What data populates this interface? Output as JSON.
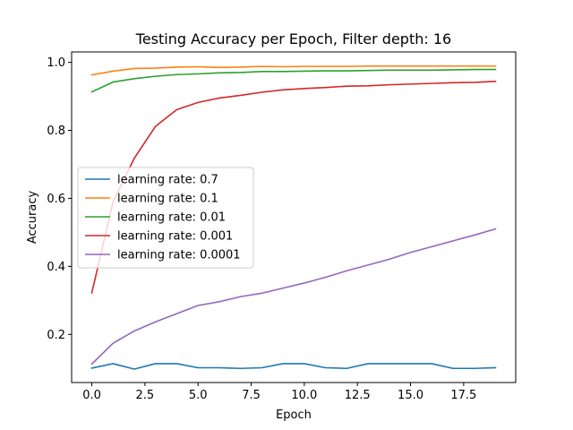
{
  "chart_data": {
    "type": "line",
    "title": "Testing Accuracy per Epoch, Filter depth: 16",
    "xlabel": "Epoch",
    "ylabel": "Accuracy",
    "xlim": [
      -0.95,
      19.95
    ],
    "ylim": [
      0.0585,
      1.0305
    ],
    "x_ticks": [
      0.0,
      2.5,
      5.0,
      7.5,
      10.0,
      12.5,
      15.0,
      17.5
    ],
    "x_tick_labels": [
      "0.0",
      "2.5",
      "5.0",
      "7.5",
      "10.0",
      "12.5",
      "15.0",
      "17.5"
    ],
    "y_ticks": [
      0.2,
      0.4,
      0.6,
      0.8,
      1.0
    ],
    "y_tick_labels": [
      "0.2",
      "0.4",
      "0.6",
      "0.8",
      "1.0"
    ],
    "grid": false,
    "legend_position": "center-left",
    "x": [
      0,
      1,
      2,
      3,
      4,
      5,
      6,
      7,
      8,
      9,
      10,
      11,
      12,
      13,
      14,
      15,
      16,
      17,
      18,
      19
    ],
    "series": [
      {
        "name": "learning rate: 0.7",
        "color": "#1f77b4",
        "values": [
          0.101,
          0.114,
          0.098,
          0.114,
          0.114,
          0.102,
          0.102,
          0.1,
          0.102,
          0.114,
          0.114,
          0.102,
          0.1,
          0.114,
          0.114,
          0.114,
          0.114,
          0.1,
          0.1,
          0.102
        ]
      },
      {
        "name": "learning rate: 0.1",
        "color": "#ff7f0e",
        "values": [
          0.963,
          0.974,
          0.982,
          0.983,
          0.986,
          0.987,
          0.985,
          0.986,
          0.988,
          0.987,
          0.988,
          0.988,
          0.988,
          0.989,
          0.989,
          0.989,
          0.989,
          0.989,
          0.989,
          0.989
        ]
      },
      {
        "name": "learning rate: 0.01",
        "color": "#2ca02c",
        "values": [
          0.913,
          0.942,
          0.952,
          0.959,
          0.964,
          0.966,
          0.969,
          0.97,
          0.973,
          0.973,
          0.974,
          0.975,
          0.975,
          0.976,
          0.977,
          0.977,
          0.977,
          0.978,
          0.979,
          0.979
        ]
      },
      {
        "name": "learning rate: 0.001",
        "color": "#d62728",
        "values": [
          0.322,
          0.59,
          0.718,
          0.812,
          0.861,
          0.882,
          0.895,
          0.903,
          0.912,
          0.919,
          0.923,
          0.926,
          0.93,
          0.931,
          0.934,
          0.936,
          0.938,
          0.94,
          0.941,
          0.944
        ]
      },
      {
        "name": "learning rate: 0.0001",
        "color": "#9467bd",
        "values": [
          0.113,
          0.174,
          0.21,
          0.237,
          0.261,
          0.285,
          0.296,
          0.311,
          0.321,
          0.336,
          0.351,
          0.368,
          0.387,
          0.404,
          0.421,
          0.441,
          0.458,
          0.475,
          0.492,
          0.51
        ]
      }
    ]
  }
}
